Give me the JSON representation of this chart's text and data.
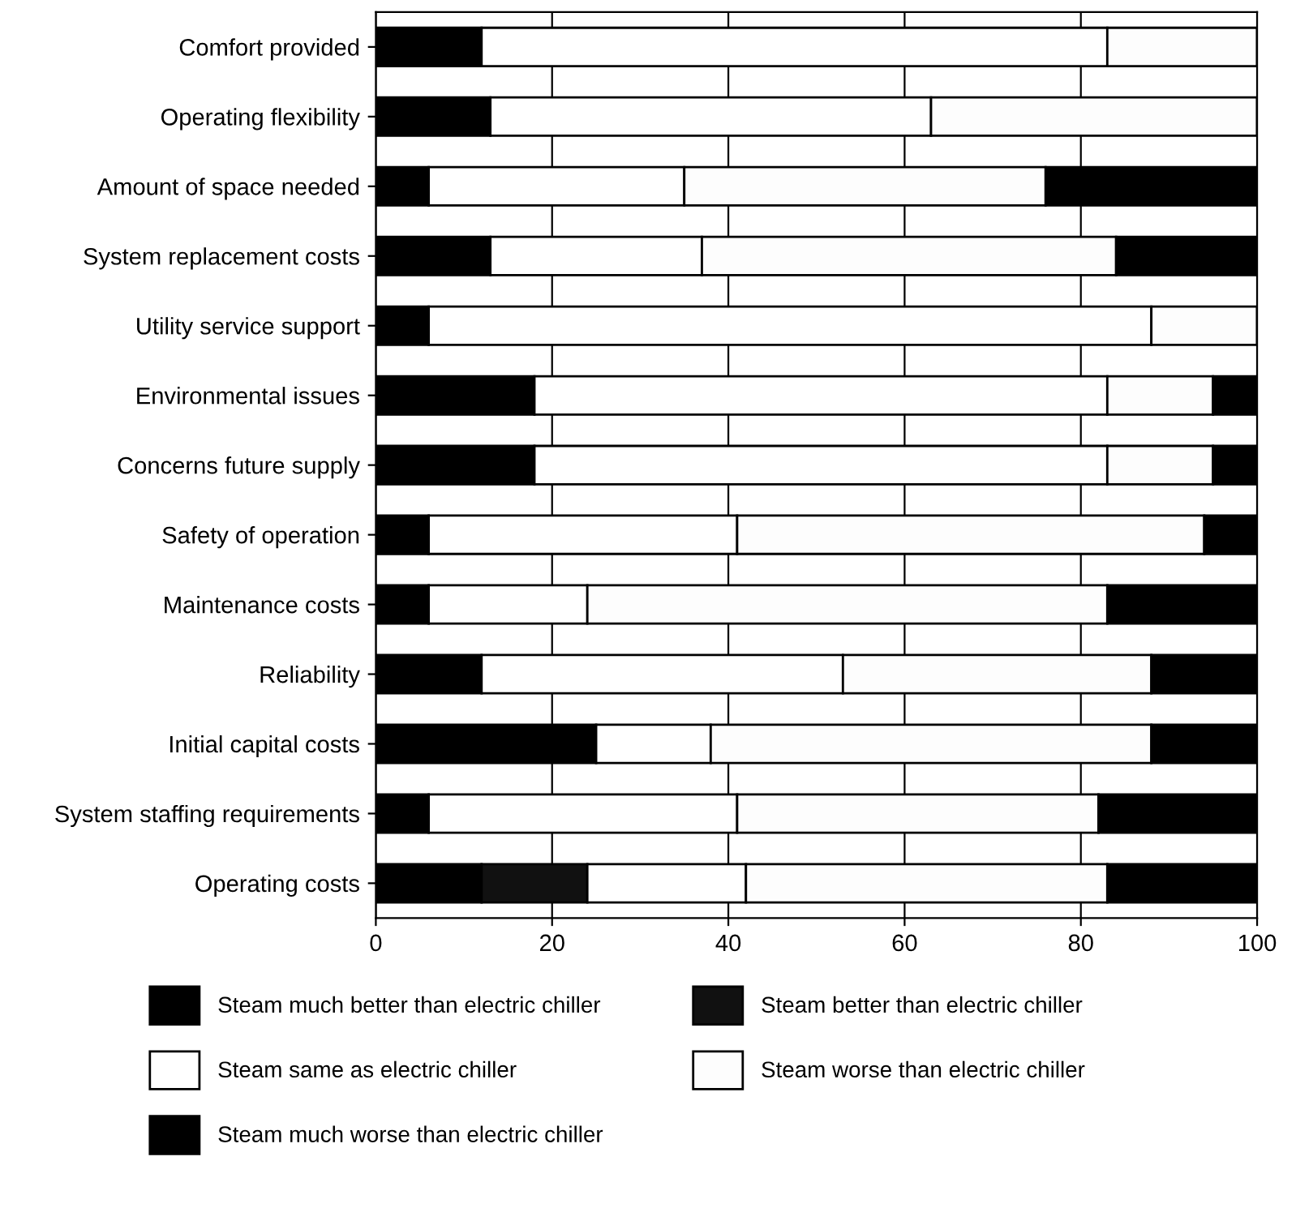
{
  "chart_data": {
    "type": "bar",
    "orientation": "horizontal",
    "stacked": true,
    "categories": [
      "Comfort provided",
      "Operating flexibility",
      "Amount of space needed",
      "System replacement costs",
      "Utility service support",
      "Environmental issues",
      "Concerns future supply",
      "Safety of operation",
      "Maintenance costs",
      "Reliability",
      "Initial capital costs",
      "System staffing requirements",
      "Operating costs"
    ],
    "series": [
      {
        "name": "Steam much better than electric chiller",
        "color": "#000000",
        "values": [
          12,
          13,
          6,
          13,
          6,
          18,
          18,
          6,
          6,
          12,
          25,
          6,
          12
        ]
      },
      {
        "name": "Steam better than electric chiller",
        "color": "#111111",
        "values": [
          0,
          0,
          0,
          0,
          0,
          0,
          0,
          0,
          0,
          0,
          0,
          0,
          12
        ]
      },
      {
        "name": "Steam same as electric chiller",
        "color": "#ffffff",
        "values": [
          71,
          50,
          29,
          24,
          82,
          65,
          65,
          35,
          18,
          41,
          13,
          35,
          18
        ]
      },
      {
        "name": "Steam worse than electric chiller",
        "color": "#fdfdfd",
        "values": [
          17,
          37,
          41,
          47,
          12,
          12,
          12,
          53,
          59,
          35,
          50,
          41,
          41
        ]
      },
      {
        "name": "Steam much worse than electric chiller",
        "color": "#000000",
        "values": [
          0,
          0,
          24,
          16,
          0,
          5,
          5,
          6,
          17,
          12,
          12,
          18,
          17
        ]
      }
    ],
    "xlim": [
      0,
      100
    ],
    "xticks": [
      0,
      20,
      40,
      60,
      80,
      100
    ],
    "grid": "x",
    "legend": "bottom"
  }
}
